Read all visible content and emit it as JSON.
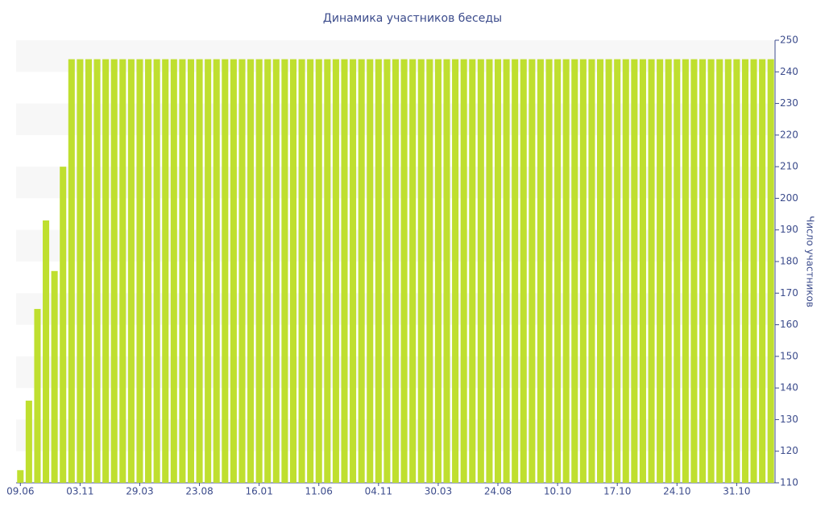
{
  "chart_data": {
    "type": "bar",
    "title": "Динамика участников беседы",
    "y_axis_label": "Число участников",
    "y_axis_side": "right",
    "color": "#bfdf2f",
    "alternate_bands": true,
    "categories": [
      "09.06",
      null,
      null,
      null,
      null,
      null,
      null,
      "03.11",
      null,
      null,
      null,
      null,
      null,
      null,
      "29.03",
      null,
      null,
      null,
      null,
      null,
      null,
      "23.08",
      null,
      null,
      null,
      null,
      null,
      null,
      "16.01",
      null,
      null,
      null,
      null,
      null,
      null,
      "11.06",
      null,
      null,
      null,
      null,
      null,
      null,
      "04.11",
      null,
      null,
      null,
      null,
      null,
      null,
      "30.03",
      null,
      null,
      null,
      null,
      null,
      null,
      "24.08",
      null,
      null,
      null,
      null,
      null,
      null,
      "10.10",
      null,
      null,
      null,
      null,
      null,
      null,
      "17.10",
      null,
      null,
      null,
      null,
      null,
      null,
      "24.10",
      null,
      null,
      null,
      null,
      null,
      null,
      "31.10",
      null,
      null,
      null,
      null
    ],
    "values": [
      114,
      136,
      165,
      193,
      177,
      210,
      244,
      244,
      244,
      244,
      244,
      244,
      244,
      244,
      244,
      244,
      244,
      244,
      244,
      244,
      244,
      244,
      244,
      244,
      244,
      244,
      244,
      244,
      244,
      244,
      244,
      244,
      244,
      244,
      244,
      244,
      244,
      244,
      244,
      244,
      244,
      244,
      244,
      244,
      244,
      244,
      244,
      244,
      244,
      244,
      244,
      244,
      244,
      244,
      244,
      244,
      244,
      244,
      244,
      244,
      244,
      244,
      244,
      244,
      244,
      244,
      244,
      244,
      244,
      244,
      244,
      244,
      244,
      244,
      244,
      244,
      244,
      244,
      244,
      244,
      244,
      244,
      244,
      244,
      244,
      244,
      244,
      244,
      244
    ],
    "ylim": [
      110,
      250
    ],
    "yticks": [
      110,
      120,
      130,
      140,
      150,
      160,
      170,
      180,
      190,
      200,
      210,
      220,
      230,
      240,
      250
    ]
  }
}
